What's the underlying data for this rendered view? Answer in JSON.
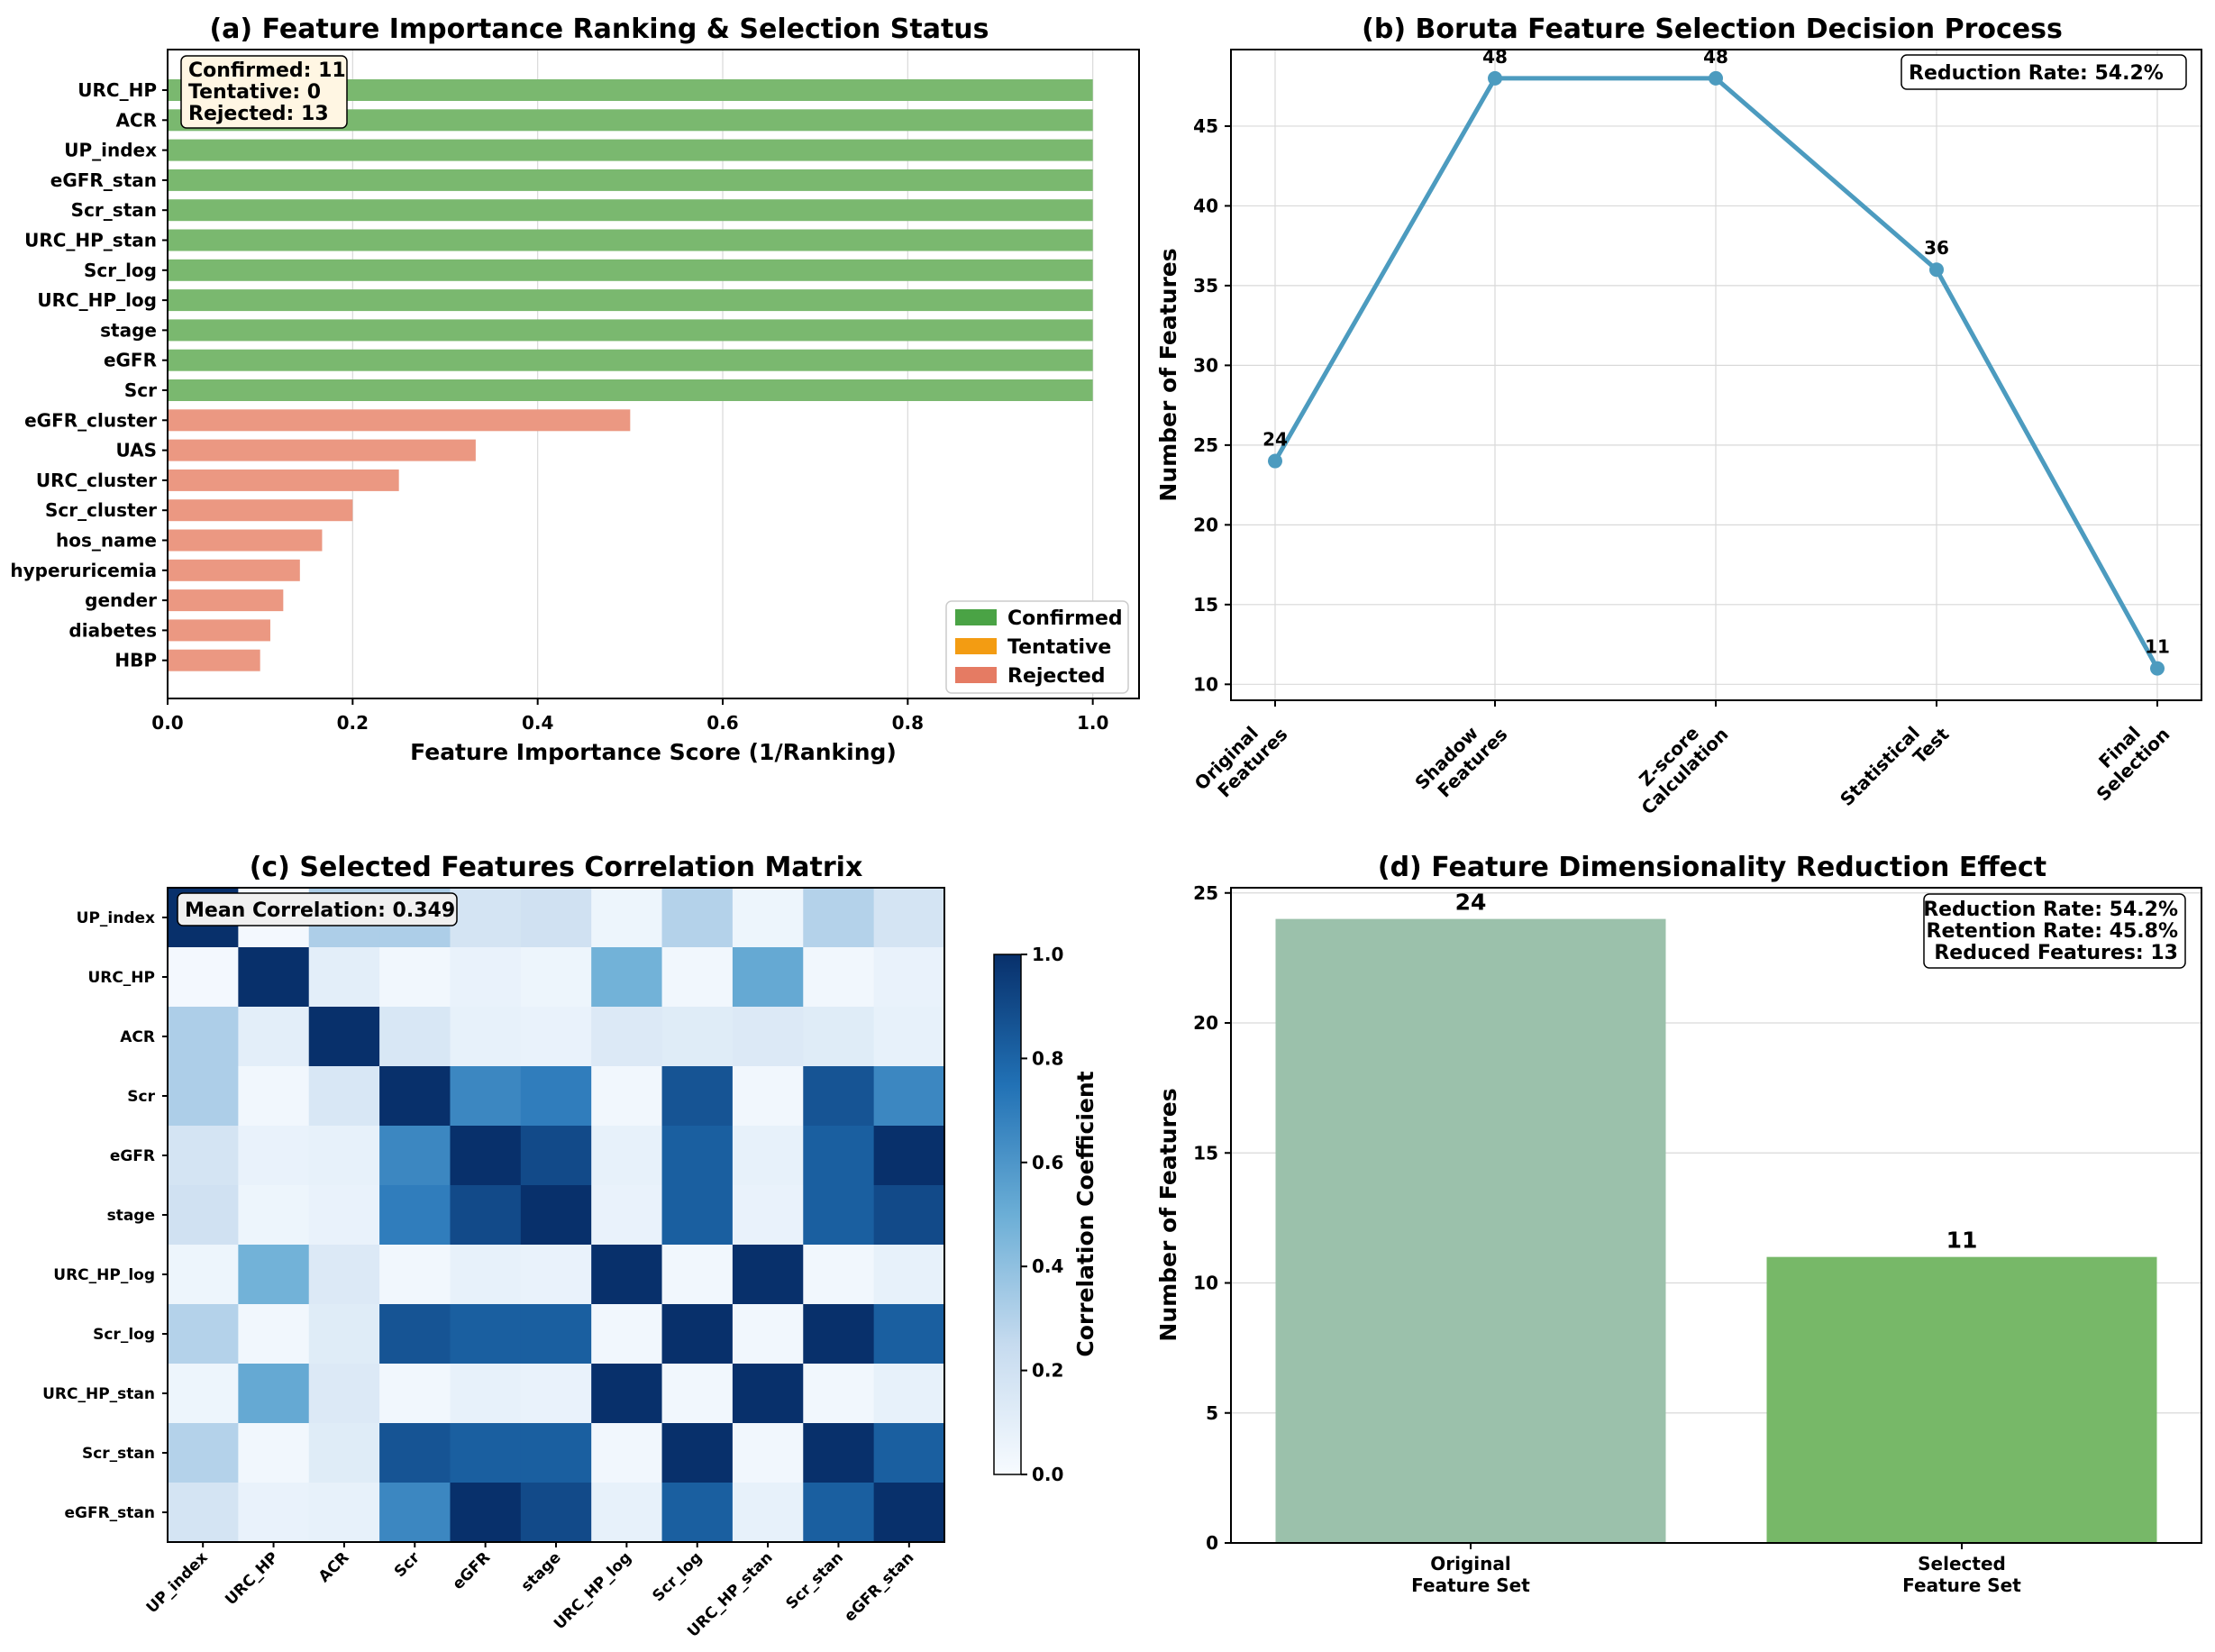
{
  "chart_data": [
    {
      "id": "a",
      "type": "bar",
      "orientation": "horizontal",
      "title": "(a) Feature Importance Ranking & Selection Status",
      "xlabel": "Feature Importance Score (1/Ranking)",
      "ylabel": "",
      "xlim": [
        0,
        1.05
      ],
      "xticks": [
        "0.0",
        "0.2",
        "0.4",
        "0.6",
        "0.8",
        "1.0"
      ],
      "grid": true,
      "categories": [
        "URC_HP",
        "ACR",
        "UP_index",
        "eGFR_stan",
        "Scr_stan",
        "URC_HP_stan",
        "Scr_log",
        "URC_HP_log",
        "stage",
        "eGFR",
        "Scr",
        "eGFR_cluster",
        "UAS",
        "URC_cluster",
        "Scr_cluster",
        "hos_name",
        "hyperuricemia",
        "gender",
        "diabetes",
        "HBP"
      ],
      "values": [
        1.0,
        1.0,
        1.0,
        1.0,
        1.0,
        1.0,
        1.0,
        1.0,
        1.0,
        1.0,
        1.0,
        0.5,
        0.333,
        0.25,
        0.2,
        0.167,
        0.143,
        0.125,
        0.111,
        0.1
      ],
      "status": [
        "Confirmed",
        "Confirmed",
        "Confirmed",
        "Confirmed",
        "Confirmed",
        "Confirmed",
        "Confirmed",
        "Confirmed",
        "Confirmed",
        "Confirmed",
        "Confirmed",
        "Rejected",
        "Rejected",
        "Rejected",
        "Rejected",
        "Rejected",
        "Rejected",
        "Rejected",
        "Rejected",
        "Rejected"
      ],
      "status_colors": {
        "Confirmed": "#7ab86f",
        "Tentative": "#f39c12",
        "Rejected": "#eb9882"
      },
      "legend": {
        "placement": "lower-right",
        "entries": [
          {
            "label": "Confirmed",
            "color": "#4aa345"
          },
          {
            "label": "Tentative",
            "color": "#f39c12"
          },
          {
            "label": "Rejected",
            "color": "#e57b63"
          }
        ]
      },
      "annotation": [
        "Confirmed: 11",
        "Tentative: 0",
        "Rejected: 13"
      ]
    },
    {
      "id": "b",
      "type": "line",
      "title": "(b) Boruta Feature Selection Decision Process",
      "xlabel": "",
      "ylabel": "Number of Features",
      "categories": [
        "Original\nFeatures",
        "Shadow\nFeatures",
        "Z-score\nCalculation",
        "Statistical\nTest",
        "Final\nSelection"
      ],
      "values": [
        24,
        48,
        48,
        36,
        11
      ],
      "data_labels": [
        "24",
        "48",
        "48",
        "36",
        "11"
      ],
      "ylim": [
        9,
        49.8
      ],
      "yticks": [
        "10",
        "15",
        "20",
        "25",
        "30",
        "35",
        "40",
        "45"
      ],
      "grid": true,
      "color": "#4c9bbf",
      "annotation": "Reduction Rate: 54.2%"
    },
    {
      "id": "c",
      "type": "heatmap",
      "title": "(c) Selected Features Correlation Matrix",
      "labels": [
        "UP_index",
        "URC_HP",
        "ACR",
        "Scr",
        "eGFR",
        "stage",
        "URC_HP_log",
        "Scr_log",
        "URC_HP_stan",
        "Scr_stan",
        "eGFR_stan"
      ],
      "matrix": [
        [
          1.0,
          0.02,
          0.32,
          0.32,
          0.18,
          0.2,
          0.05,
          0.3,
          0.05,
          0.3,
          0.18
        ],
        [
          0.02,
          1.0,
          0.1,
          0.03,
          0.07,
          0.05,
          0.48,
          0.03,
          0.52,
          0.03,
          0.07
        ],
        [
          0.32,
          0.1,
          1.0,
          0.16,
          0.08,
          0.07,
          0.14,
          0.12,
          0.14,
          0.12,
          0.08
        ],
        [
          0.32,
          0.03,
          0.16,
          1.0,
          0.66,
          0.7,
          0.03,
          0.86,
          0.03,
          0.86,
          0.66
        ],
        [
          0.18,
          0.07,
          0.08,
          0.66,
          1.0,
          0.9,
          0.08,
          0.82,
          0.08,
          0.82,
          1.0
        ],
        [
          0.2,
          0.05,
          0.07,
          0.7,
          0.9,
          1.0,
          0.07,
          0.82,
          0.07,
          0.82,
          0.9
        ],
        [
          0.05,
          0.48,
          0.14,
          0.03,
          0.08,
          0.07,
          1.0,
          0.03,
          1.0,
          0.03,
          0.08
        ],
        [
          0.3,
          0.03,
          0.12,
          0.86,
          0.82,
          0.82,
          0.03,
          1.0,
          0.03,
          1.0,
          0.82
        ],
        [
          0.05,
          0.52,
          0.14,
          0.03,
          0.08,
          0.07,
          1.0,
          0.03,
          1.0,
          0.03,
          0.08
        ],
        [
          0.3,
          0.03,
          0.12,
          0.86,
          0.82,
          0.82,
          0.03,
          1.0,
          0.03,
          1.0,
          0.82
        ],
        [
          0.18,
          0.07,
          0.08,
          0.66,
          1.0,
          0.9,
          0.08,
          0.82,
          0.08,
          0.82,
          1.0
        ]
      ],
      "colorbar": {
        "label": "Correlation Coefficient",
        "range": [
          0,
          1
        ],
        "ticks": [
          "0.0",
          "0.2",
          "0.4",
          "0.6",
          "0.8",
          "1.0"
        ],
        "colors": [
          "#f7fbff",
          "#c6dbef",
          "#6baed6",
          "#2171b5",
          "#08306b"
        ]
      },
      "annotation": "Mean Correlation: 0.349"
    },
    {
      "id": "d",
      "type": "bar",
      "title": "(d) Feature Dimensionality Reduction Effect",
      "xlabel": "",
      "ylabel": "Number of Features",
      "categories": [
        "Original\nFeature Set",
        "Selected\nFeature Set"
      ],
      "values": [
        24,
        11
      ],
      "data_labels": [
        "24",
        "11"
      ],
      "colors": [
        "#9bc1ab",
        "#77b868"
      ],
      "ylim": [
        0,
        25.2
      ],
      "yticks": [
        "0",
        "5",
        "10",
        "15",
        "20",
        "25"
      ],
      "grid": true,
      "annotation": [
        "Reduction Rate: 54.2%",
        "Retention Rate: 45.8%",
        "Reduced Features: 13"
      ]
    }
  ]
}
